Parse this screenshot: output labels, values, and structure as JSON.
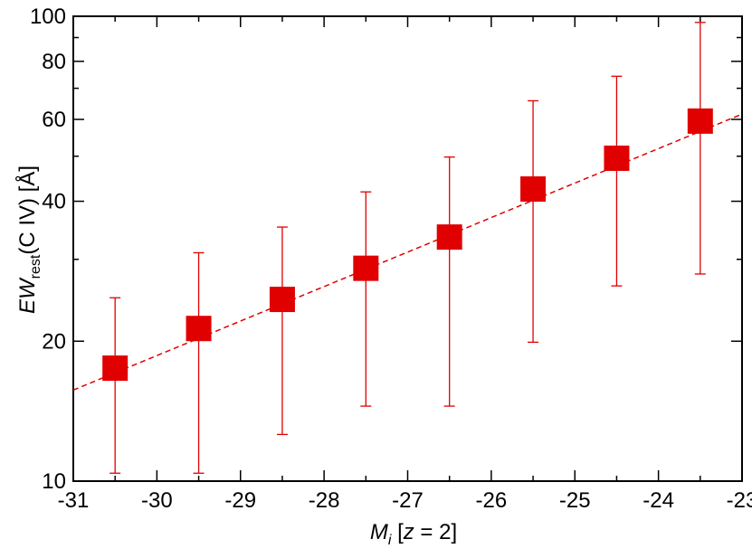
{
  "chart_data": {
    "type": "scatter",
    "x_scale": "linear",
    "y_scale": "log",
    "xlim": [
      -31,
      -23
    ],
    "ylim": [
      10,
      100
    ],
    "x_ticks": [
      -31,
      -30,
      -29,
      -28,
      -27,
      -26,
      -25,
      -24,
      -23
    ],
    "x_tick_labels": [
      "-31",
      "-30",
      "-29",
      "-28",
      "-27",
      "-26",
      "-25",
      "-24",
      "-23"
    ],
    "y_ticks": [
      10,
      20,
      40,
      60,
      80,
      100
    ],
    "y_tick_labels": [
      "10",
      "20",
      "40",
      "60",
      "80",
      "100"
    ],
    "xlabel": {
      "main": "M",
      "sub": "i",
      "rest1": " [",
      "var": "z",
      "rest2": " = 2]"
    },
    "ylabel": {
      "main": "EW",
      "sub": "rest",
      "rest": "(C IV) [Å]"
    },
    "grid": false,
    "marker_color": "#e00000",
    "series": [
      {
        "x": [
          -30.5,
          -29.5,
          -28.5,
          -27.5,
          -26.5,
          -25.5,
          -24.5,
          -23.5
        ],
        "y": [
          17.5,
          21.3,
          24.6,
          28.7,
          33.5,
          42.5,
          49.5,
          59.5
        ],
        "err_low": [
          10.4,
          10.4,
          12.6,
          14.5,
          14.5,
          19.9,
          26.3,
          27.9
        ],
        "err_high": [
          24.8,
          31.0,
          35.2,
          41.9,
          49.8,
          65.8,
          74.3,
          97.0
        ]
      }
    ],
    "fit_line": {
      "x": [
        -31,
        -23
      ],
      "y": [
        15.7,
        61.6
      ],
      "style": "dashed"
    }
  }
}
